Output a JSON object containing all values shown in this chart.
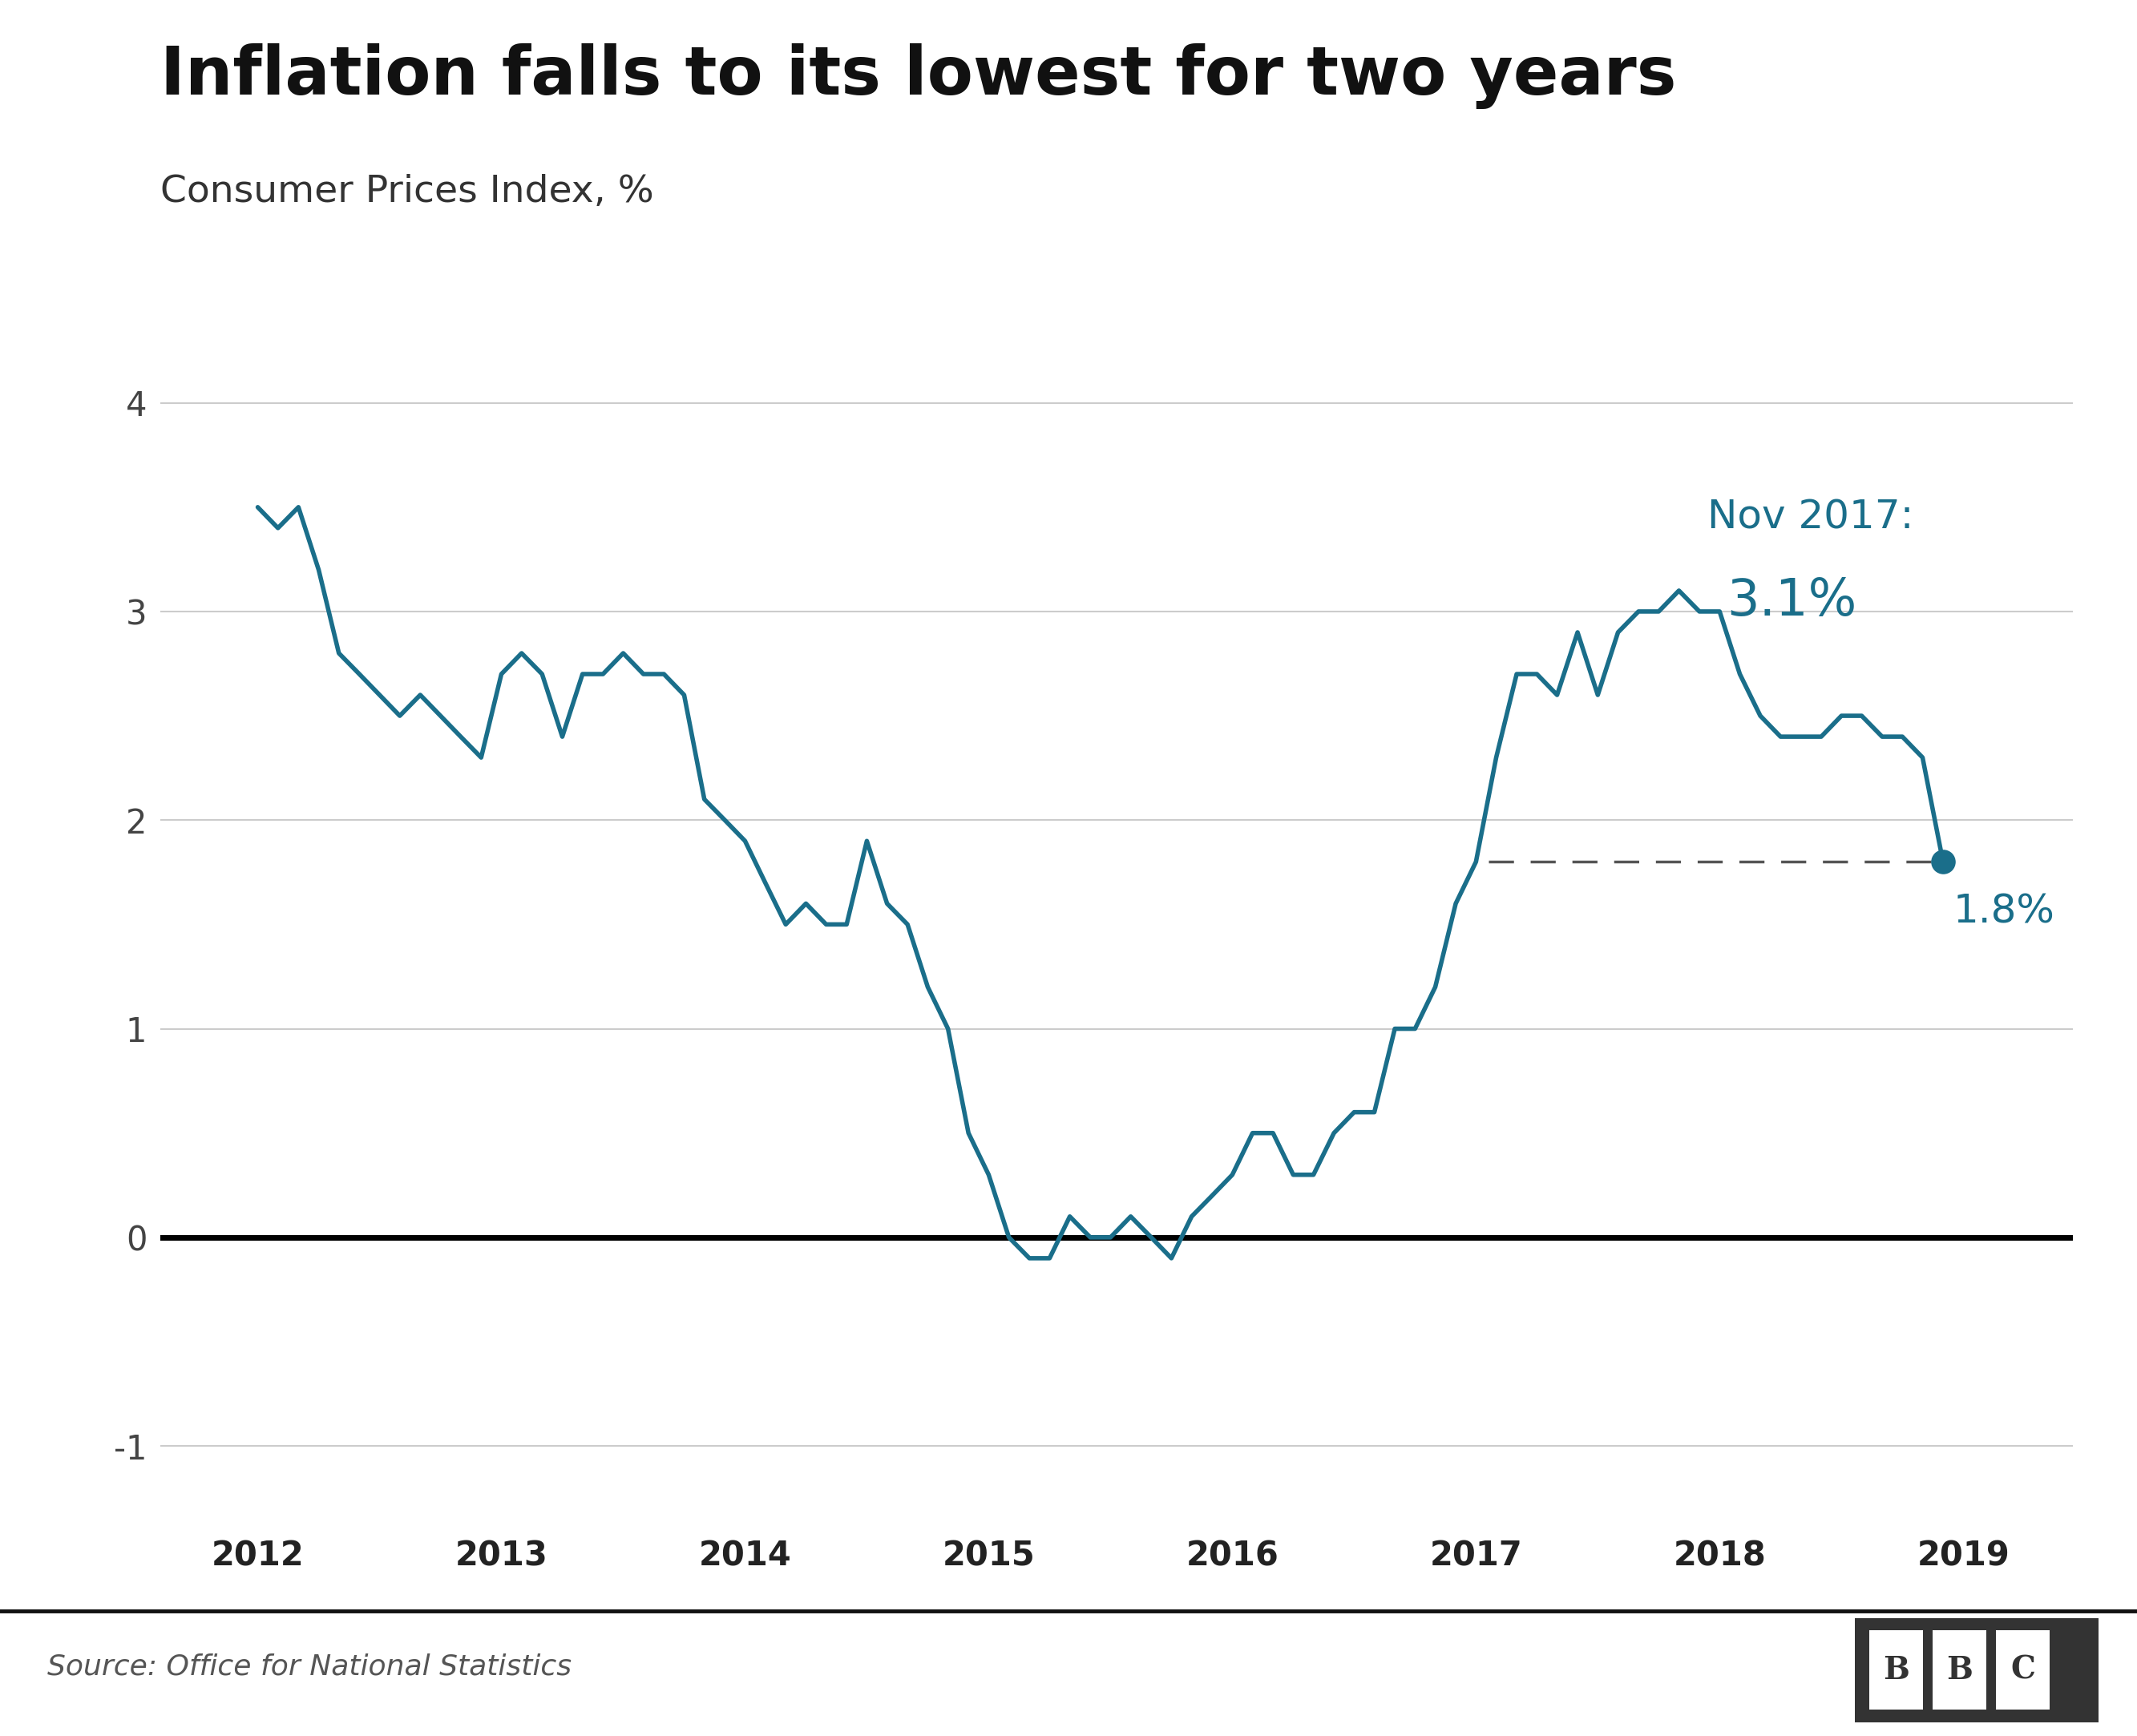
{
  "title": "Inflation falls to its lowest for two years",
  "subtitle": "Consumer Prices Index, %",
  "source": "Source: Office for National Statistics",
  "line_color": "#1a6e8a",
  "annotation_color": "#1a6e8a",
  "background_color": "#ffffff",
  "ylim": [
    -1.35,
    4.35
  ],
  "yticks": [
    -1,
    0,
    1,
    2,
    3,
    4
  ],
  "xlim_start": 2011.6,
  "xlim_end": 2019.45,
  "xticks": [
    2012,
    2013,
    2014,
    2015,
    2016,
    2017,
    2018,
    2019
  ],
  "endpoint_value": 1.8,
  "endpoint_x": 2018.917,
  "nov2017_value": 3.1,
  "nov2017_x": 2017.833,
  "dashed_line_y": 1.8,
  "dashed_line_x_start": 2017.05,
  "data": [
    [
      2012.0,
      3.5
    ],
    [
      2012.083,
      3.4
    ],
    [
      2012.167,
      3.5
    ],
    [
      2012.25,
      3.2
    ],
    [
      2012.333,
      2.8
    ],
    [
      2012.417,
      2.7
    ],
    [
      2012.5,
      2.6
    ],
    [
      2012.583,
      2.5
    ],
    [
      2012.667,
      2.6
    ],
    [
      2012.75,
      2.5
    ],
    [
      2012.833,
      2.4
    ],
    [
      2012.917,
      2.3
    ],
    [
      2013.0,
      2.7
    ],
    [
      2013.083,
      2.8
    ],
    [
      2013.167,
      2.7
    ],
    [
      2013.25,
      2.4
    ],
    [
      2013.333,
      2.7
    ],
    [
      2013.417,
      2.7
    ],
    [
      2013.5,
      2.8
    ],
    [
      2013.583,
      2.7
    ],
    [
      2013.667,
      2.7
    ],
    [
      2013.75,
      2.6
    ],
    [
      2013.833,
      2.1
    ],
    [
      2013.917,
      2.0
    ],
    [
      2014.0,
      1.9
    ],
    [
      2014.083,
      1.7
    ],
    [
      2014.167,
      1.5
    ],
    [
      2014.25,
      1.6
    ],
    [
      2014.333,
      1.5
    ],
    [
      2014.417,
      1.5
    ],
    [
      2014.5,
      1.9
    ],
    [
      2014.583,
      1.6
    ],
    [
      2014.667,
      1.5
    ],
    [
      2014.75,
      1.2
    ],
    [
      2014.833,
      1.0
    ],
    [
      2014.917,
      0.5
    ],
    [
      2015.0,
      0.3
    ],
    [
      2015.083,
      0.0
    ],
    [
      2015.167,
      -0.1
    ],
    [
      2015.25,
      -0.1
    ],
    [
      2015.333,
      0.1
    ],
    [
      2015.417,
      0.0
    ],
    [
      2015.5,
      0.0
    ],
    [
      2015.583,
      0.1
    ],
    [
      2015.667,
      0.0
    ],
    [
      2015.75,
      -0.1
    ],
    [
      2015.833,
      0.1
    ],
    [
      2015.917,
      0.2
    ],
    [
      2016.0,
      0.3
    ],
    [
      2016.083,
      0.5
    ],
    [
      2016.167,
      0.5
    ],
    [
      2016.25,
      0.3
    ],
    [
      2016.333,
      0.3
    ],
    [
      2016.417,
      0.5
    ],
    [
      2016.5,
      0.6
    ],
    [
      2016.583,
      0.6
    ],
    [
      2016.667,
      1.0
    ],
    [
      2016.75,
      1.0
    ],
    [
      2016.833,
      1.2
    ],
    [
      2016.917,
      1.6
    ],
    [
      2017.0,
      1.8
    ],
    [
      2017.083,
      2.3
    ],
    [
      2017.167,
      2.7
    ],
    [
      2017.25,
      2.7
    ],
    [
      2017.333,
      2.6
    ],
    [
      2017.417,
      2.9
    ],
    [
      2017.5,
      2.6
    ],
    [
      2017.583,
      2.9
    ],
    [
      2017.667,
      3.0
    ],
    [
      2017.75,
      3.0
    ],
    [
      2017.833,
      3.1
    ],
    [
      2017.917,
      3.0
    ],
    [
      2018.0,
      3.0
    ],
    [
      2018.083,
      2.7
    ],
    [
      2018.167,
      2.5
    ],
    [
      2018.25,
      2.4
    ],
    [
      2018.333,
      2.4
    ],
    [
      2018.417,
      2.4
    ],
    [
      2018.5,
      2.5
    ],
    [
      2018.583,
      2.5
    ],
    [
      2018.667,
      2.4
    ],
    [
      2018.75,
      2.4
    ],
    [
      2018.833,
      2.3
    ],
    [
      2018.917,
      1.8
    ]
  ]
}
